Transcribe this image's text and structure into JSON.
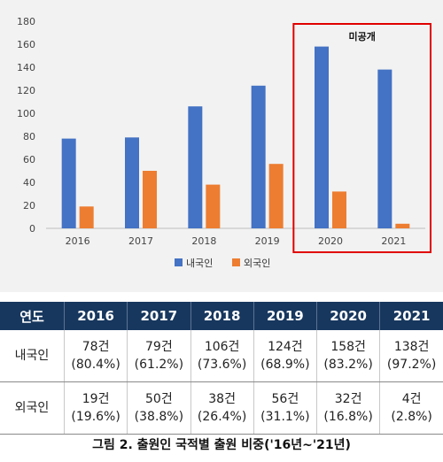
{
  "chart_data": {
    "type": "bar",
    "categories": [
      "2016",
      "2017",
      "2018",
      "2019",
      "2020",
      "2021"
    ],
    "series": [
      {
        "name": "내국인",
        "values": [
          78,
          79,
          106,
          124,
          158,
          138
        ],
        "color": "#4472c4"
      },
      {
        "name": "외국인",
        "values": [
          19,
          50,
          38,
          56,
          32,
          4
        ],
        "color": "#ed7d31"
      }
    ],
    "ylim": [
      0,
      180
    ],
    "yticks": [
      0,
      20,
      40,
      60,
      80,
      100,
      120,
      140,
      160,
      180
    ],
    "grid": false,
    "legend_position": "bottom",
    "highlight": {
      "label": "미공개",
      "categories": [
        "2020",
        "2021"
      ],
      "color": "#e00000"
    }
  },
  "table": {
    "header": [
      "연도",
      "2016",
      "2017",
      "2018",
      "2019",
      "2020",
      "2021"
    ],
    "rows": [
      {
        "label": "내국인",
        "cells": [
          {
            "count": "78건",
            "share": "(80.4%)"
          },
          {
            "count": "79건",
            "share": "(61.2%)"
          },
          {
            "count": "106건",
            "share": "(73.6%)"
          },
          {
            "count": "124건",
            "share": "(68.9%)"
          },
          {
            "count": "158건",
            "share": "(83.2%)"
          },
          {
            "count": "138건",
            "share": "(97.2%)"
          }
        ]
      },
      {
        "label": "외국인",
        "cells": [
          {
            "count": "19건",
            "share": "(19.6%)"
          },
          {
            "count": "50건",
            "share": "(38.8%)"
          },
          {
            "count": "38건",
            "share": "(26.4%)"
          },
          {
            "count": "56건",
            "share": "(31.1%)"
          },
          {
            "count": "32건",
            "share": "(16.8%)"
          },
          {
            "count": "4건",
            "share": "(2.8%)"
          }
        ]
      }
    ]
  },
  "caption": "그림 2. 출원인 국적별 출원 비중('16년~'21년)"
}
